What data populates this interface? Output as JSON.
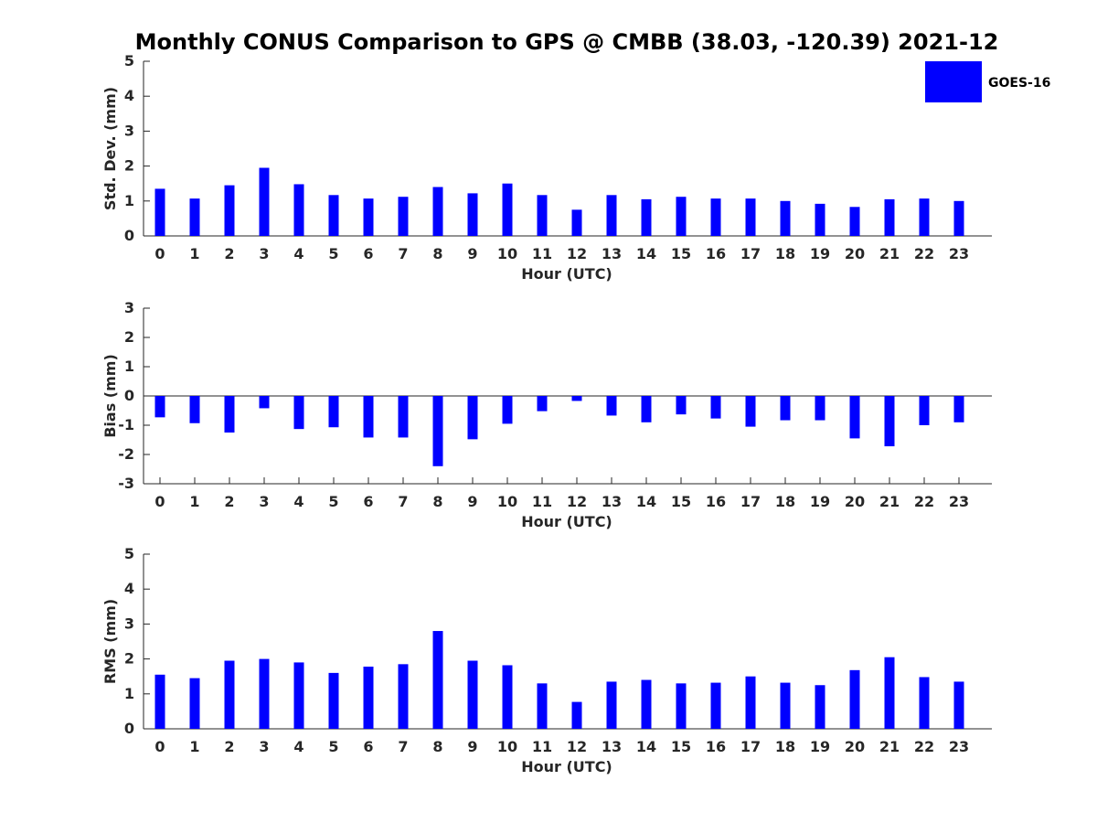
{
  "title": "Monthly CONUS Comparison to GPS @ CMBB (38.03, -120.39) 2021-12",
  "legend": {
    "label": "GOES-16",
    "color": "#0000ff",
    "placement": "top-right"
  },
  "chart_data": [
    {
      "type": "bar",
      "title": "",
      "xlabel": "Hour (UTC)",
      "ylabel": "Std. Dev. (mm)",
      "ylim": [
        0,
        5
      ],
      "yticks": [
        0,
        1,
        2,
        3,
        4,
        5
      ],
      "categories": [
        "0",
        "1",
        "2",
        "3",
        "4",
        "5",
        "6",
        "7",
        "8",
        "9",
        "10",
        "11",
        "12",
        "13",
        "14",
        "15",
        "16",
        "17",
        "18",
        "19",
        "20",
        "21",
        "22",
        "23"
      ],
      "series": [
        {
          "name": "GOES-16",
          "values": [
            1.35,
            1.07,
            1.45,
            1.95,
            1.48,
            1.17,
            1.07,
            1.12,
            1.4,
            1.22,
            1.5,
            1.17,
            0.75,
            1.17,
            1.05,
            1.12,
            1.07,
            1.07,
            1.0,
            0.92,
            0.83,
            1.05,
            1.07,
            1.0
          ]
        }
      ]
    },
    {
      "type": "bar",
      "title": "",
      "xlabel": "Hour (UTC)",
      "ylabel": "Bias (mm)",
      "ylim": [
        -3,
        3
      ],
      "yticks": [
        -3,
        -2,
        -1,
        0,
        1,
        2,
        3
      ],
      "categories": [
        "0",
        "1",
        "2",
        "3",
        "4",
        "5",
        "6",
        "7",
        "8",
        "9",
        "10",
        "11",
        "12",
        "13",
        "14",
        "15",
        "16",
        "17",
        "18",
        "19",
        "20",
        "21",
        "22",
        "23"
      ],
      "series": [
        {
          "name": "GOES-16",
          "values": [
            -0.73,
            -0.93,
            -1.25,
            -0.42,
            -1.13,
            -1.07,
            -1.42,
            -1.42,
            -2.4,
            -1.48,
            -0.95,
            -0.52,
            -0.17,
            -0.67,
            -0.9,
            -0.63,
            -0.77,
            -1.05,
            -0.83,
            -0.83,
            -1.45,
            -1.72,
            -1.0,
            -0.9
          ]
        }
      ]
    },
    {
      "type": "bar",
      "title": "",
      "xlabel": "Hour (UTC)",
      "ylabel": "RMS (mm)",
      "ylim": [
        0,
        5
      ],
      "yticks": [
        0,
        1,
        2,
        3,
        4,
        5
      ],
      "categories": [
        "0",
        "1",
        "2",
        "3",
        "4",
        "5",
        "6",
        "7",
        "8",
        "9",
        "10",
        "11",
        "12",
        "13",
        "14",
        "15",
        "16",
        "17",
        "18",
        "19",
        "20",
        "21",
        "22",
        "23"
      ],
      "series": [
        {
          "name": "GOES-16",
          "values": [
            1.55,
            1.45,
            1.95,
            2.0,
            1.9,
            1.6,
            1.78,
            1.85,
            2.8,
            1.95,
            1.82,
            1.3,
            0.77,
            1.35,
            1.4,
            1.3,
            1.32,
            1.5,
            1.32,
            1.25,
            1.68,
            2.05,
            1.48,
            1.35
          ]
        }
      ]
    }
  ]
}
